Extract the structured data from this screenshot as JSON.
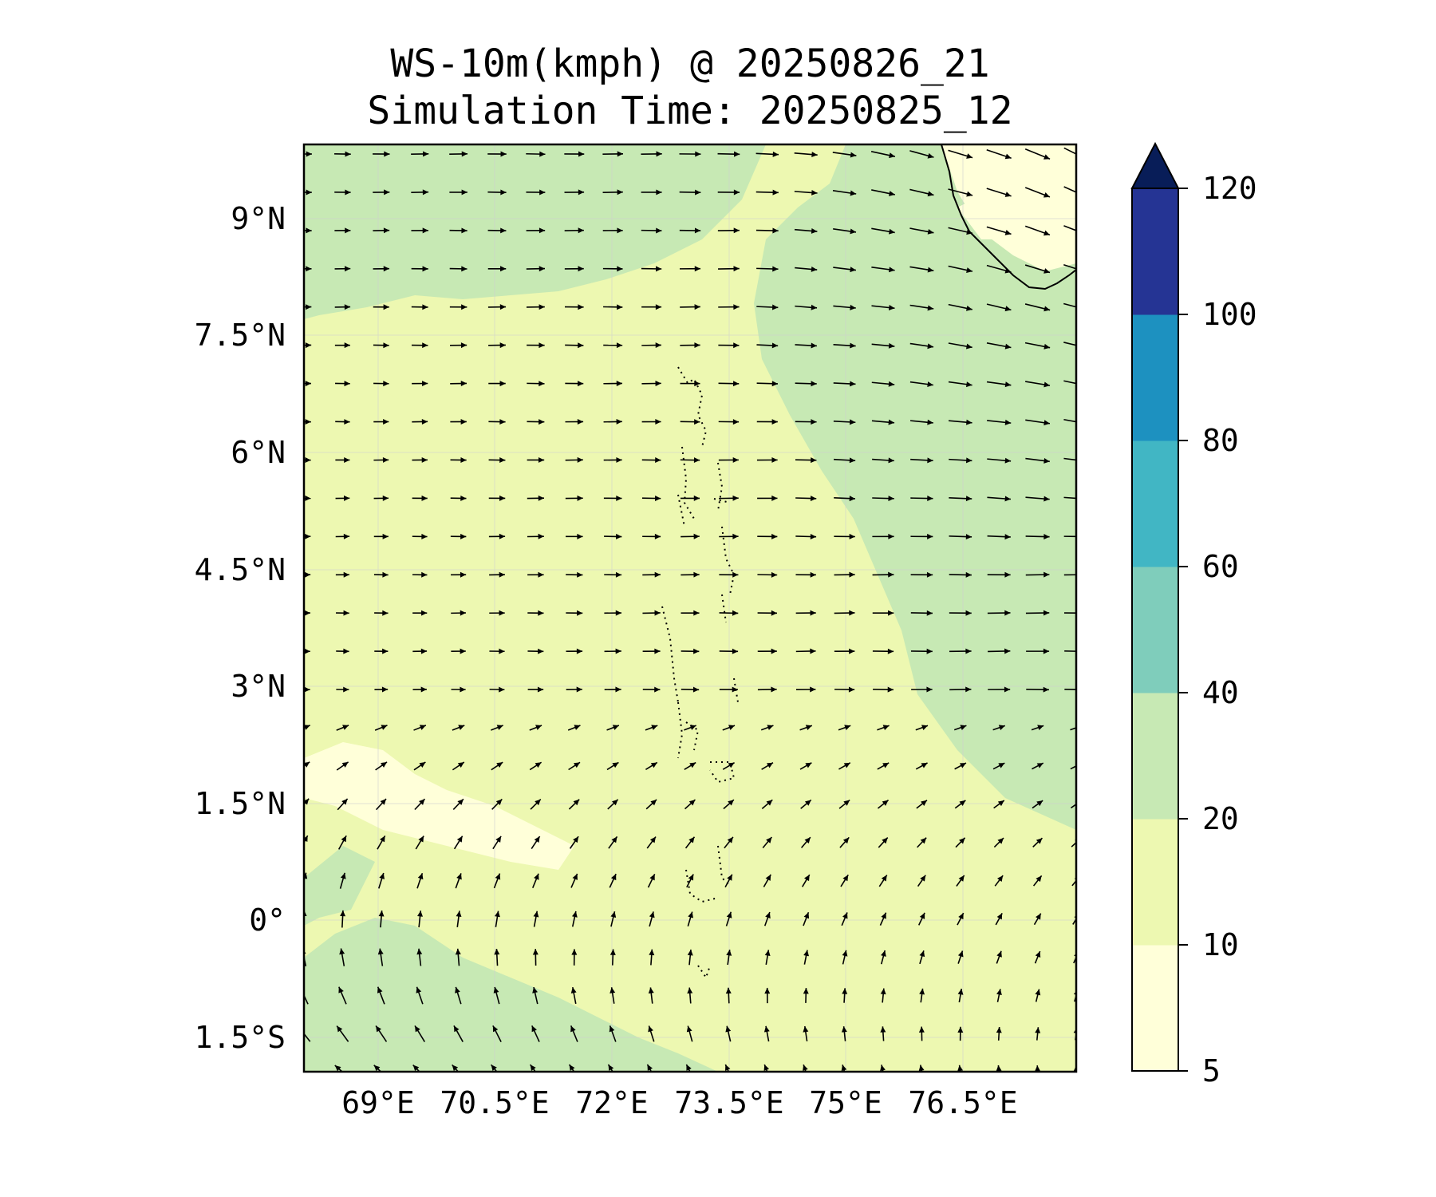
{
  "title": {
    "line1": "WS-10m(kmph) @ 20250826_21",
    "line2": "Simulation Time: 20250825_12"
  },
  "map": {
    "variable": "10 m wind speed",
    "unit": "kmph",
    "lon_range": [
      67.7,
      77.6
    ],
    "lat_range": [
      -1.95,
      9.95
    ],
    "lon_ticks": [
      "69°E",
      "70.5°E",
      "72°E",
      "73.5°E",
      "75°E",
      "76.5°E"
    ],
    "lon_tick_values": [
      69,
      70.5,
      72,
      73.5,
      75,
      76.5
    ],
    "lat_ticks": [
      "9°N",
      "7.5°N",
      "6°N",
      "4.5°N",
      "3°N",
      "1.5°N",
      "0°",
      "1.5°S"
    ],
    "lat_tick_values": [
      9,
      7.5,
      6,
      4.5,
      3,
      1.5,
      0,
      -1.5
    ],
    "gridlines": true,
    "features": [
      "India southern tip coastline (top-right)",
      "Lakshadweep/Maldives atoll outlines (dotted, centre)"
    ],
    "wind_vectors": "quiver arrows: westerly flow north of about 2°N, turning to south-easterly / southerly flow in the south-west"
  },
  "colorbar": {
    "levels": [
      5,
      10,
      20,
      40,
      60,
      80,
      100,
      120
    ],
    "tick_labels": [
      "5",
      "10",
      "20",
      "40",
      "60",
      "80",
      "100",
      "120"
    ],
    "colors": [
      "#ffffd9",
      "#edf8b1",
      "#c7e9b4",
      "#7fcdbb",
      "#41b6c4",
      "#1d91c0",
      "#253494"
    ],
    "extend_max_color": "#081d58",
    "extend": "max"
  }
}
